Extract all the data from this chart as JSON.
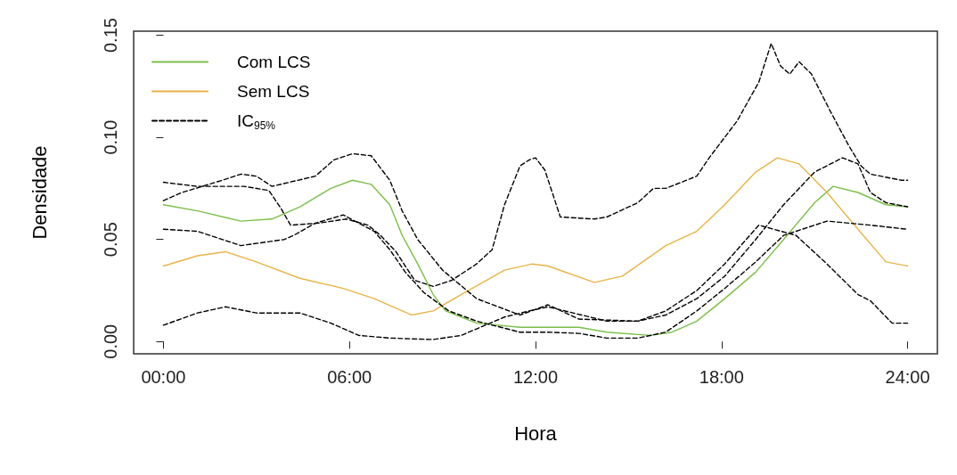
{
  "chart_data": {
    "type": "line",
    "xlabel": "Hora",
    "ylabel": "Densidade",
    "xlim": [
      -0.96,
      24.96
    ],
    "xticks": [
      {
        "value": 0,
        "label": "00:00"
      },
      {
        "value": 6,
        "label": "06:00"
      },
      {
        "value": 12,
        "label": "12:00"
      },
      {
        "value": 18,
        "label": "18:00"
      },
      {
        "value": 24,
        "label": "24:00"
      }
    ],
    "ylim": [
      -0.006,
      0.152
    ],
    "yticks": [
      {
        "value": 0,
        "label": "0.00"
      },
      {
        "value": 0.05,
        "label": "0.05"
      },
      {
        "value": 0.1,
        "label": "0.10"
      },
      {
        "value": 0.15,
        "label": "0.15"
      }
    ],
    "legend": "top left",
    "grid": false,
    "marker": "none",
    "series": [
      {
        "name": "Com LCS",
        "color": "#7cbf4a",
        "line_style": "solid",
        "x": [
          0,
          1.1,
          2.5,
          3.5,
          4.4,
          5.4,
          6.1,
          6.7,
          7.3,
          7.7,
          8.2,
          8.7,
          9.1,
          10.1,
          11.5,
          13.4,
          14.3,
          15.7,
          16.4,
          17.2,
          18.1,
          19.1,
          20.0,
          21.0,
          21.6,
          22.4,
          23.3,
          24
        ],
        "values": [
          0.067,
          0.064,
          0.059,
          0.06,
          0.066,
          0.075,
          0.079,
          0.077,
          0.067,
          0.052,
          0.038,
          0.023,
          0.015,
          0.009,
          0.007,
          0.007,
          0.0046,
          0.003,
          0.0046,
          0.01,
          0.021,
          0.034,
          0.05,
          0.068,
          0.076,
          0.073,
          0.067,
          0.066
        ]
      },
      {
        "name": "Sem LCS",
        "color": "#e8b44a",
        "line_style": "solid",
        "x": [
          0,
          1.1,
          2,
          3,
          4.4,
          5.8,
          6.8,
          8.0,
          8.7,
          9.6,
          11.0,
          11.9,
          12.4,
          13.9,
          14.8,
          16.2,
          17.2,
          18.1,
          19.1,
          19.8,
          20.5,
          21.4,
          22.4,
          23.3,
          24
        ],
        "values": [
          0.037,
          0.042,
          0.044,
          0.039,
          0.031,
          0.026,
          0.021,
          0.013,
          0.015,
          0.023,
          0.035,
          0.038,
          0.037,
          0.029,
          0.032,
          0.047,
          0.054,
          0.067,
          0.083,
          0.09,
          0.087,
          0.073,
          0.055,
          0.039,
          0.037
        ]
      },
      {
        "name": "IC$_{95%}$",
        "color": "#000000",
        "line_style": "dashed",
        "x": [
          0,
          1.1,
          2.6,
          3.4,
          3.8,
          4.1,
          5,
          5.9,
          6.6,
          7.0,
          7.5,
          8.1,
          8.7,
          9.3,
          10.1,
          10.6,
          11.0,
          11.5,
          11.8,
          12,
          12.3,
          12.8,
          13.9,
          14.3,
          15.3,
          15.8,
          16.2,
          17.2,
          17.6,
          18.5,
          19.2,
          19.6,
          19.9,
          20.2,
          20.5,
          20.9,
          21.5,
          22.1,
          22.5,
          22.8,
          23.8,
          24
        ],
        "values": [
          0.078,
          0.076,
          0.076,
          0.074,
          0.065,
          0.057,
          0.058,
          0.06,
          0.057,
          0.052,
          0.044,
          0.03,
          0.027,
          0.03,
          0.038,
          0.045,
          0.067,
          0.086,
          0.089,
          0.09,
          0.084,
          0.061,
          0.06,
          0.061,
          0.068,
          0.075,
          0.075,
          0.081,
          0.09,
          0.108,
          0.127,
          0.146,
          0.135,
          0.131,
          0.137,
          0.131,
          0.113,
          0.096,
          0.086,
          0.082,
          0.079,
          0.079
        ]
      },
      {
        "color": "#000000",
        "line_style": "dashed",
        "x": [
          0,
          0.6,
          1.9,
          2.5,
          3.0,
          3.5,
          4.9,
          5.5,
          6.1,
          6.7,
          7.3,
          7.7,
          8.2,
          9.0,
          10.1,
          11.5,
          12.4,
          13.4,
          15.3,
          16.2,
          17.2,
          18.1,
          19.1,
          20.0,
          21.0,
          21.9,
          22.4,
          22.8,
          23.3,
          24
        ],
        "values": [
          0.069,
          0.073,
          0.079,
          0.082,
          0.081,
          0.076,
          0.081,
          0.089,
          0.092,
          0.091,
          0.079,
          0.064,
          0.05,
          0.035,
          0.021,
          0.013,
          0.018,
          0.011,
          0.01,
          0.013,
          0.021,
          0.032,
          0.05,
          0.067,
          0.083,
          0.09,
          0.087,
          0.073,
          0.068,
          0.066
        ]
      },
      {
        "color": "#000000",
        "line_style": "dashed",
        "x": [
          0,
          1.1,
          2.5,
          3.9,
          4.2,
          4.9,
          5.8,
          6.8,
          7.3,
          7.8,
          8.4,
          9.2,
          10.1,
          11.5,
          12.4,
          13.4,
          14.3,
          15.3,
          16.2,
          17.2,
          18.1,
          19.1,
          20,
          21.4,
          22.8,
          24
        ],
        "values": [
          0.055,
          0.054,
          0.047,
          0.05,
          0.052,
          0.058,
          0.062,
          0.054,
          0.045,
          0.034,
          0.024,
          0.015,
          0.01,
          0.0046,
          0.0046,
          0.004,
          0.0017,
          0.0017,
          0.0046,
          0.015,
          0.026,
          0.039,
          0.052,
          0.059,
          0.057,
          0.055
        ]
      },
      {
        "color": "#000000",
        "line_style": "dashed",
        "x": [
          0,
          1.1,
          2.0,
          3,
          4.4,
          5.4,
          6.3,
          7.3,
          8.7,
          9.6,
          10.3,
          11.0,
          11.8,
          12.4,
          14.3,
          15.3,
          16.2,
          17.2,
          18.1,
          19.2,
          20.4,
          21.4,
          22.4,
          22.8,
          23.5,
          24
        ],
        "values": [
          0.008,
          0.014,
          0.017,
          0.014,
          0.014,
          0.009,
          0.003,
          0.0017,
          0.001,
          0.003,
          0.0075,
          0.012,
          0.015,
          0.017,
          0.01,
          0.01,
          0.015,
          0.025,
          0.038,
          0.057,
          0.052,
          0.038,
          0.023,
          0.02,
          0.009,
          0.009
        ]
      }
    ]
  }
}
